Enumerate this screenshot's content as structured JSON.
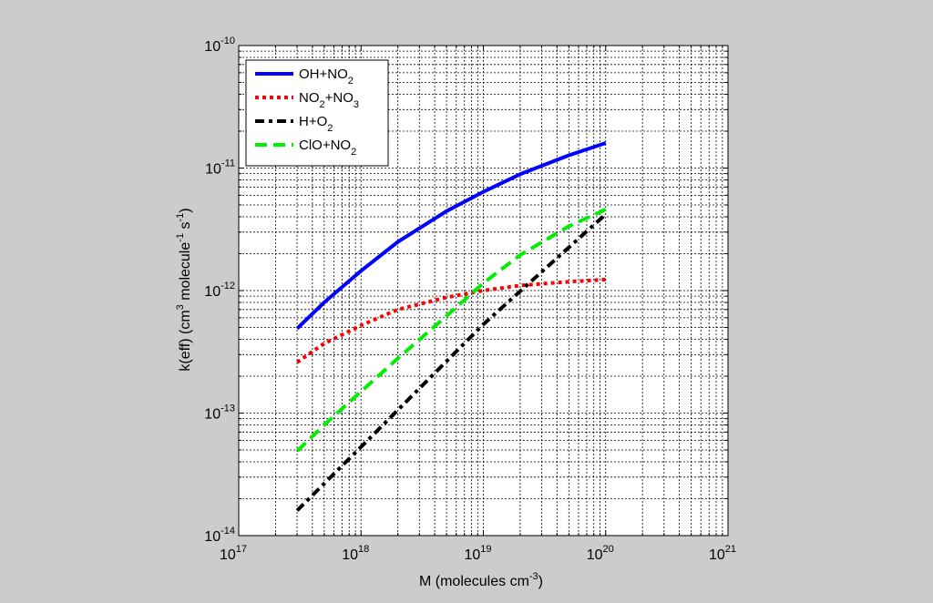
{
  "chart_data": {
    "type": "line",
    "xscale": "log",
    "yscale": "log",
    "xlim": [
      1e+17,
      1e+21
    ],
    "ylim": [
      1e-14,
      1e-10
    ],
    "grid": true,
    "grid_style": "dotted, major and minor",
    "legend_placement": "top-left",
    "xlabel_main": "M  (molecules cm",
    "xlabel_exp": "-3",
    "xlabel_close": ")",
    "ylabel_parts": [
      "k(eff)  (cm",
      "3",
      " molecule",
      "-1",
      " s",
      "-1",
      ")"
    ],
    "xticks": [
      {
        "base": "10",
        "exp": "17",
        "value": 1e+17
      },
      {
        "base": "10",
        "exp": "18",
        "value": 1e+18
      },
      {
        "base": "10",
        "exp": "19",
        "value": 1e+19
      },
      {
        "base": "10",
        "exp": "20",
        "value": 1e+20
      },
      {
        "base": "10",
        "exp": "21",
        "value": 1e+21
      }
    ],
    "yticks": [
      {
        "base": "10",
        "exp": "-14",
        "value": 1e-14
      },
      {
        "base": "10",
        "exp": "-13",
        "value": 1e-13
      },
      {
        "base": "10",
        "exp": "-12",
        "value": 1e-12
      },
      {
        "base": "10",
        "exp": "-11",
        "value": 1e-11
      },
      {
        "base": "10",
        "exp": "-10",
        "value": 1e-10
      }
    ],
    "series": [
      {
        "name_parts": [
          {
            "t": "OH+NO"
          },
          {
            "t": "2",
            "sub": true
          }
        ],
        "color": "#0000ff",
        "style": "solid",
        "x": [
          3e+17,
          5e+17,
          1e+18,
          2e+18,
          5e+18,
          1e+19,
          2e+19,
          5e+19,
          1e+20
        ],
        "y": [
          4.9e-13,
          8e-13,
          1.45e-12,
          2.5e-12,
          4.45e-12,
          6.4e-12,
          8.9e-12,
          1.27e-11,
          1.6e-11
        ]
      },
      {
        "name_parts": [
          {
            "t": "NO"
          },
          {
            "t": "2",
            "sub": true
          },
          {
            "t": "+NO"
          },
          {
            "t": "3",
            "sub": true
          }
        ],
        "color": "#ff0000",
        "style": "dotted",
        "x": [
          3e+17,
          5e+17,
          1e+18,
          2e+18,
          5e+18,
          1e+19,
          2e+19,
          5e+19,
          1e+20
        ],
        "y": [
          2.6e-13,
          3.7e-13,
          5.2e-13,
          7e-13,
          8.8e-13,
          1e-12,
          1.1e-12,
          1.18e-12,
          1.23e-12
        ]
      },
      {
        "name_parts": [
          {
            "t": "H+O"
          },
          {
            "t": "2",
            "sub": true
          }
        ],
        "color": "#000000",
        "style": "dashdot",
        "x": [
          3e+17,
          1e+18,
          1e+19,
          1e+20
        ],
        "y": [
          1.6e-14,
          5.3e-14,
          5.3e-13,
          4.2e-12
        ]
      },
      {
        "name_parts": [
          {
            "t": "ClO+NO"
          },
          {
            "t": "2",
            "sub": true
          }
        ],
        "color": "#00ee00",
        "style": "dashed",
        "x": [
          3e+17,
          5e+17,
          1e+18,
          2e+18,
          5e+18,
          1e+19,
          2e+19,
          5e+19,
          1e+20
        ],
        "y": [
          4.9e-14,
          8e-14,
          1.5e-13,
          2.8e-13,
          6.2e-13,
          1.15e-12,
          1.95e-12,
          3.35e-12,
          4.6e-12
        ]
      }
    ]
  }
}
